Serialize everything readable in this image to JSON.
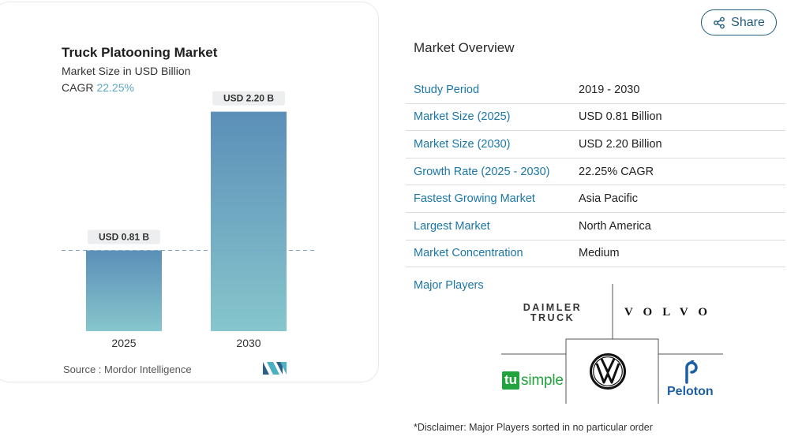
{
  "chart_data": {
    "type": "bar",
    "title": "Truck Platooning Market",
    "subtitle": "Market Size in USD Billion",
    "cagr_label": "CAGR",
    "cagr_value": "22.25%",
    "categories": [
      "2025",
      "2030"
    ],
    "values": [
      0.81,
      2.2
    ],
    "data_labels": [
      "USD 0.81 B",
      "USD 2.20 B"
    ],
    "ylim": [
      0,
      2.45
    ],
    "grid": false,
    "colors": {
      "bar_top": "#5b8fb8",
      "bar_bottom": "#86c6cc",
      "label_bg": "#eceeef",
      "dash": "#7aa7c7"
    }
  },
  "source": "Source :  Mordor Intelligence",
  "share": {
    "label": "Share"
  },
  "overview": {
    "title": "Market Overview",
    "rows": [
      {
        "label": "Study Period",
        "value": "2019 - 2030"
      },
      {
        "label": "Market Size (2025)",
        "value": "USD 0.81 Billion"
      },
      {
        "label": "Market Size (2030)",
        "value": "USD 2.20 Billion"
      },
      {
        "label": "Growth Rate (2025 - 2030)",
        "value": "22.25% CAGR"
      },
      {
        "label": "Fastest Growing Market",
        "value": "Asia Pacific"
      },
      {
        "label": "Largest Market",
        "value": "North America"
      },
      {
        "label": "Market Concentration",
        "value": "Medium"
      }
    ],
    "players_title": "Major Players"
  },
  "players": {
    "daimler_line1": "DAIMLER",
    "daimler_line2": "TRUCK",
    "volvo": "VOLVO",
    "tu": "tu",
    "simple": "simple",
    "peloton": "Peloton"
  },
  "disclaimer": "*Disclaimer: Major Players sorted in no particular order"
}
